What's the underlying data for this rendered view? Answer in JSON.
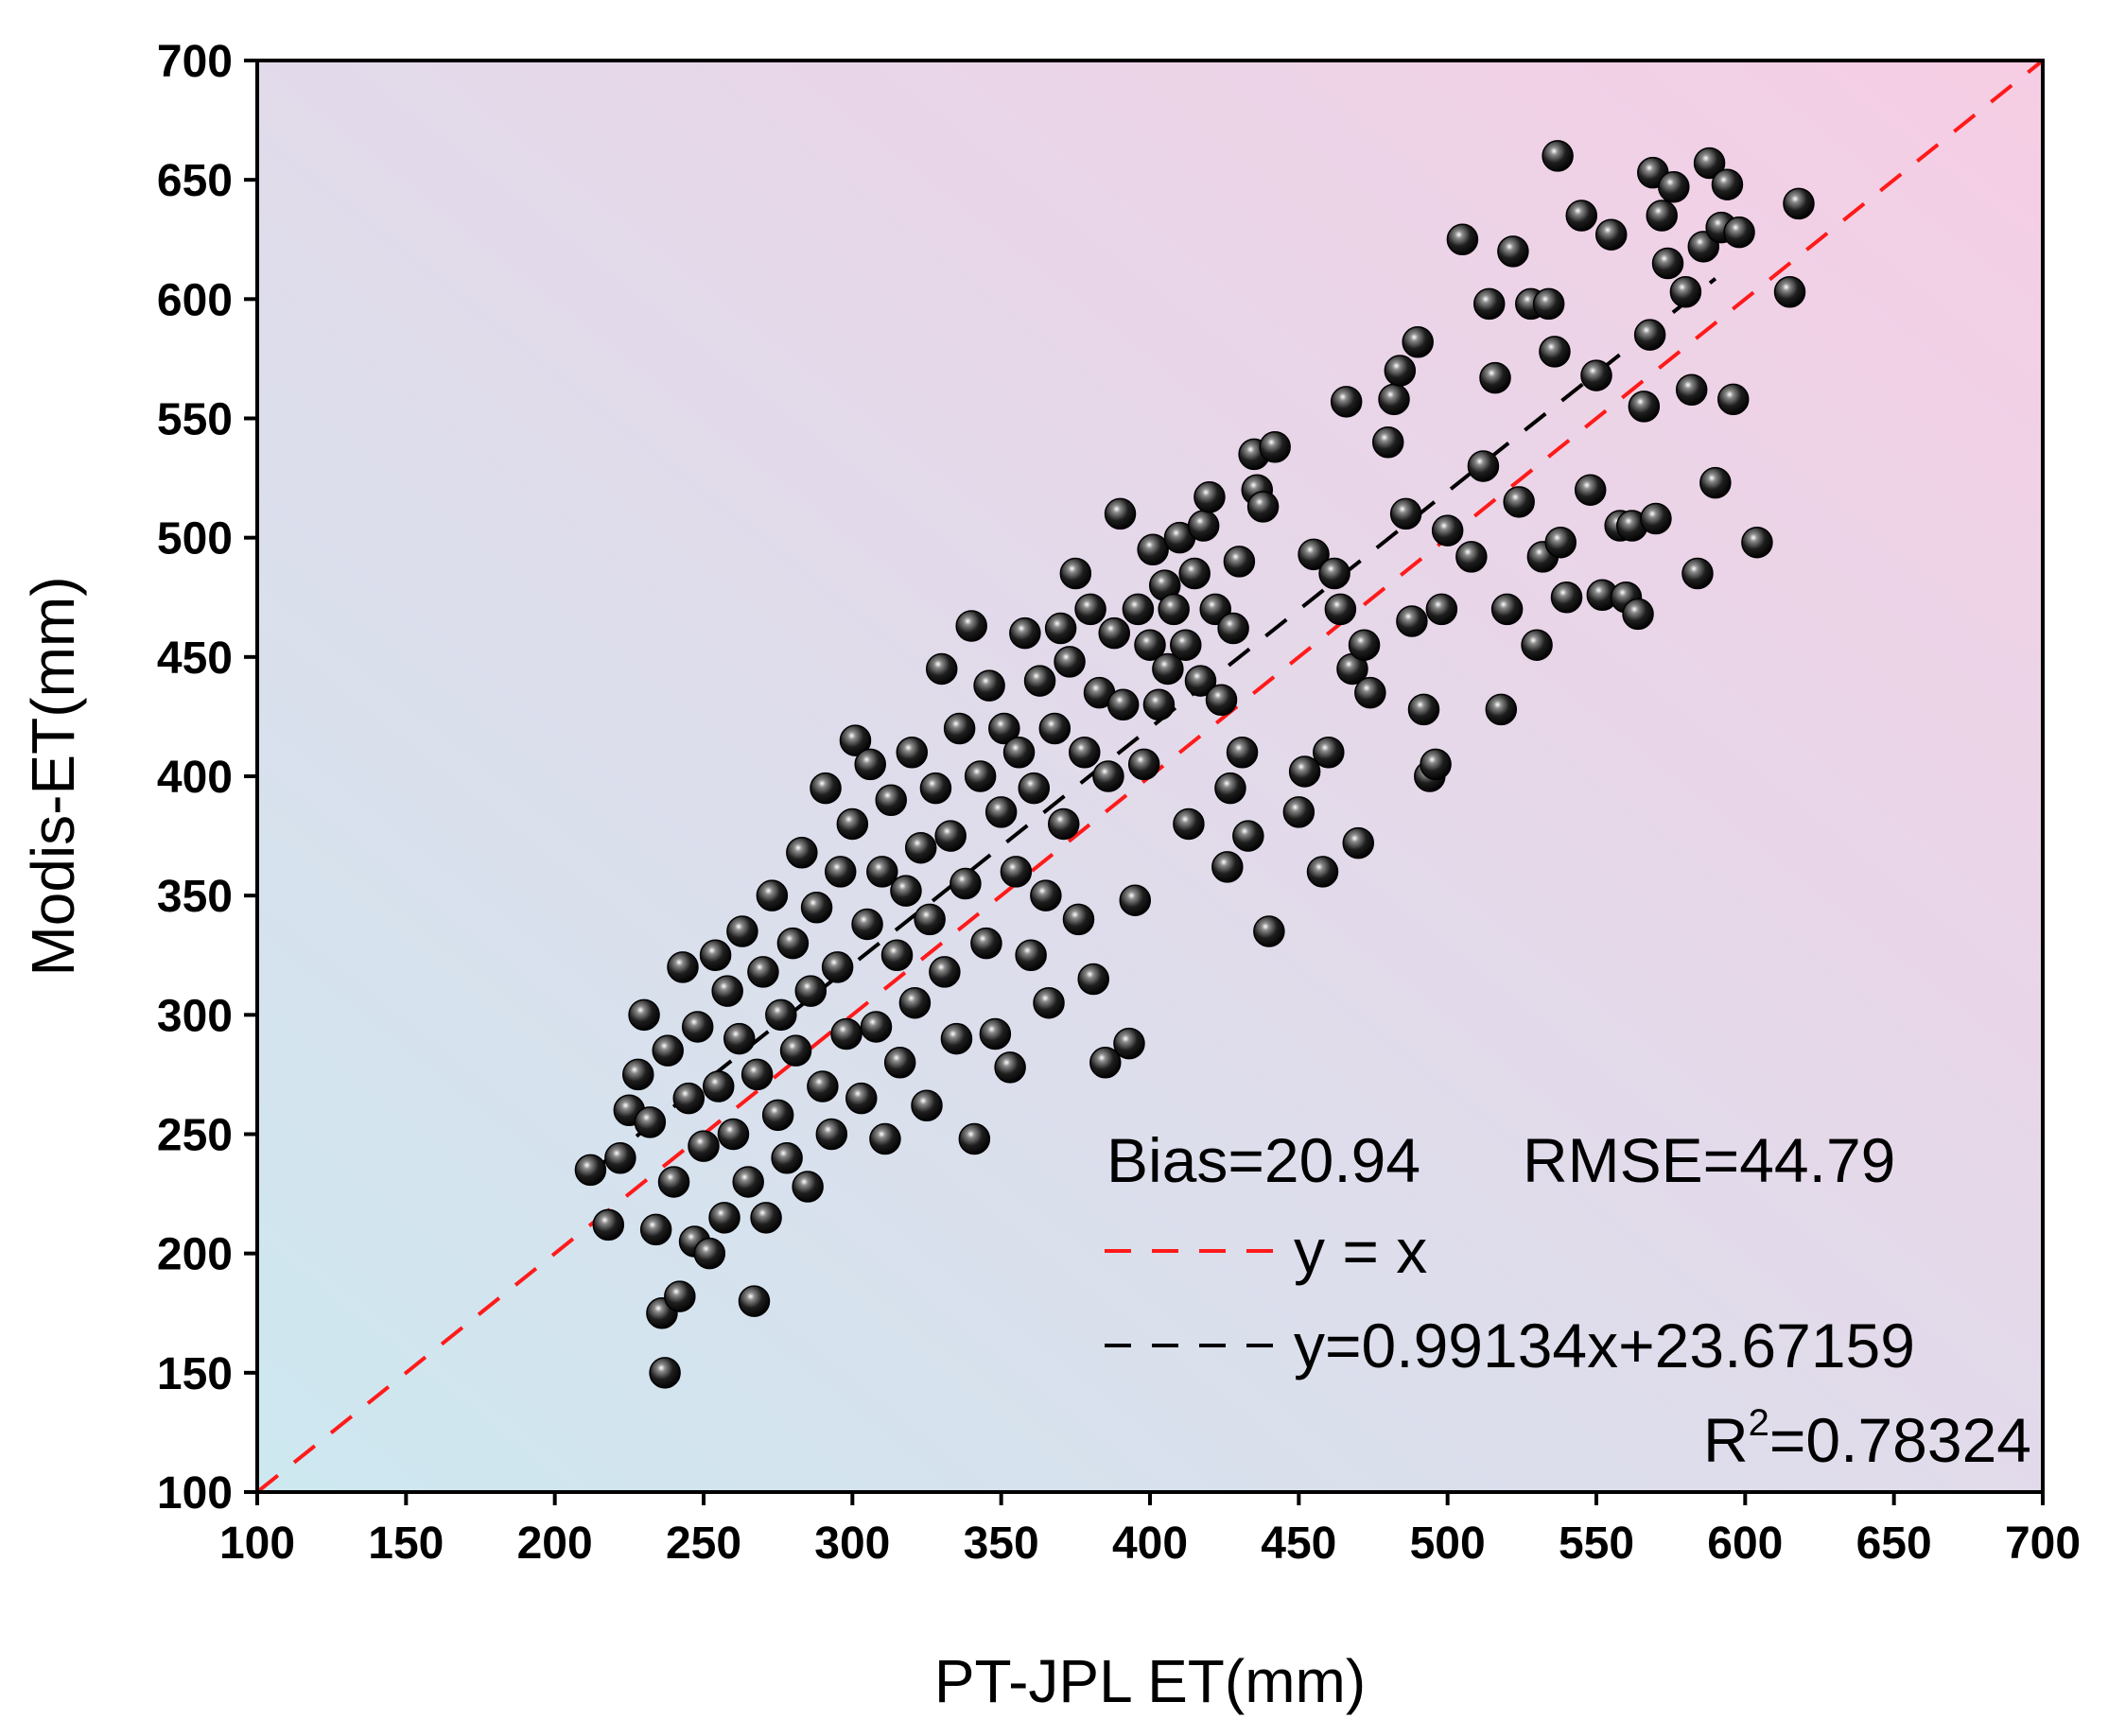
{
  "chart_data": {
    "type": "scatter",
    "title": "",
    "xlabel": "PT-JPL ET(mm)",
    "ylabel": "Modis-ET(mm)",
    "xlim": [
      100,
      700
    ],
    "ylim": [
      100,
      700
    ],
    "xticks": [
      "100",
      "150",
      "200",
      "250",
      "300",
      "350",
      "400",
      "450",
      "500",
      "550",
      "600",
      "650",
      "700"
    ],
    "yticks": [
      "100",
      "150",
      "200",
      "250",
      "300",
      "350",
      "400",
      "450",
      "500",
      "550",
      "600",
      "650",
      "700"
    ],
    "grid": false,
    "background": {
      "bottom_left": "#cde8f0",
      "top_right": "#f6cde4"
    },
    "stats": {
      "bias": "Bias=20.94",
      "rmse": "RMSE=44.79"
    },
    "legend": {
      "placement": "bottom-right",
      "one_to_one": {
        "label": "y = x",
        "color": "#ff1a1a",
        "slope": 1,
        "intercept": 0
      },
      "fit": {
        "label": "y=0.99134x+23.67159",
        "color": "#000000",
        "slope": 0.99134,
        "intercept": 23.67159,
        "x_range": [
          215,
          590
        ]
      },
      "r2": {
        "prefix": "R",
        "sup": "2",
        "suffix": "=0.78324"
      }
    },
    "point_color": "#000000",
    "points": [
      [
        212,
        235
      ],
      [
        218,
        212
      ],
      [
        222,
        240
      ],
      [
        225,
        260
      ],
      [
        228,
        275
      ],
      [
        230,
        300
      ],
      [
        232,
        255
      ],
      [
        234,
        210
      ],
      [
        236,
        175
      ],
      [
        237,
        150
      ],
      [
        238,
        285
      ],
      [
        240,
        230
      ],
      [
        242,
        182
      ],
      [
        243,
        320
      ],
      [
        245,
        265
      ],
      [
        247,
        205
      ],
      [
        248,
        295
      ],
      [
        250,
        245
      ],
      [
        252,
        200
      ],
      [
        254,
        325
      ],
      [
        255,
        270
      ],
      [
        257,
        215
      ],
      [
        258,
        310
      ],
      [
        260,
        250
      ],
      [
        262,
        290
      ],
      [
        263,
        335
      ],
      [
        265,
        230
      ],
      [
        267,
        180
      ],
      [
        268,
        275
      ],
      [
        270,
        318
      ],
      [
        271,
        215
      ],
      [
        273,
        350
      ],
      [
        275,
        258
      ],
      [
        276,
        300
      ],
      [
        278,
        240
      ],
      [
        280,
        330
      ],
      [
        281,
        285
      ],
      [
        283,
        368
      ],
      [
        285,
        228
      ],
      [
        286,
        310
      ],
      [
        288,
        345
      ],
      [
        290,
        270
      ],
      [
        291,
        395
      ],
      [
        293,
        250
      ],
      [
        295,
        320
      ],
      [
        296,
        360
      ],
      [
        298,
        292
      ],
      [
        300,
        380
      ],
      [
        301,
        415
      ],
      [
        303,
        265
      ],
      [
        305,
        338
      ],
      [
        306,
        405
      ],
      [
        308,
        295
      ],
      [
        310,
        360
      ],
      [
        311,
        248
      ],
      [
        313,
        390
      ],
      [
        315,
        325
      ],
      [
        316,
        280
      ],
      [
        318,
        352
      ],
      [
        320,
        410
      ],
      [
        321,
        305
      ],
      [
        323,
        370
      ],
      [
        325,
        262
      ],
      [
        326,
        340
      ],
      [
        328,
        395
      ],
      [
        330,
        445
      ],
      [
        331,
        318
      ],
      [
        333,
        375
      ],
      [
        335,
        290
      ],
      [
        336,
        420
      ],
      [
        338,
        355
      ],
      [
        340,
        463
      ],
      [
        341,
        248
      ],
      [
        343,
        400
      ],
      [
        345,
        330
      ],
      [
        346,
        438
      ],
      [
        348,
        292
      ],
      [
        350,
        385
      ],
      [
        351,
        420
      ],
      [
        353,
        278
      ],
      [
        355,
        360
      ],
      [
        356,
        410
      ],
      [
        358,
        460
      ],
      [
        360,
        325
      ],
      [
        361,
        395
      ],
      [
        363,
        440
      ],
      [
        365,
        350
      ],
      [
        366,
        305
      ],
      [
        368,
        420
      ],
      [
        370,
        462
      ],
      [
        371,
        380
      ],
      [
        373,
        448
      ],
      [
        375,
        485
      ],
      [
        376,
        340
      ],
      [
        378,
        410
      ],
      [
        380,
        470
      ],
      [
        381,
        315
      ],
      [
        383,
        435
      ],
      [
        385,
        280
      ],
      [
        386,
        400
      ],
      [
        388,
        460
      ],
      [
        390,
        510
      ],
      [
        391,
        430
      ],
      [
        393,
        288
      ],
      [
        395,
        348
      ],
      [
        396,
        470
      ],
      [
        398,
        405
      ],
      [
        400,
        455
      ],
      [
        401,
        495
      ],
      [
        403,
        430
      ],
      [
        405,
        480
      ],
      [
        406,
        445
      ],
      [
        408,
        470
      ],
      [
        410,
        500
      ],
      [
        412,
        455
      ],
      [
        413,
        380
      ],
      [
        415,
        485
      ],
      [
        417,
        440
      ],
      [
        418,
        505
      ],
      [
        420,
        517
      ],
      [
        422,
        470
      ],
      [
        424,
        432
      ],
      [
        426,
        362
      ],
      [
        427,
        395
      ],
      [
        428,
        462
      ],
      [
        430,
        490
      ],
      [
        431,
        410
      ],
      [
        433,
        375
      ],
      [
        435,
        535
      ],
      [
        436,
        520
      ],
      [
        438,
        513
      ],
      [
        440,
        335
      ],
      [
        442,
        538
      ],
      [
        450,
        385
      ],
      [
        452,
        402
      ],
      [
        455,
        493
      ],
      [
        458,
        360
      ],
      [
        460,
        410
      ],
      [
        462,
        485
      ],
      [
        464,
        470
      ],
      [
        466,
        557
      ],
      [
        468,
        445
      ],
      [
        470,
        372
      ],
      [
        472,
        455
      ],
      [
        474,
        435
      ],
      [
        480,
        540
      ],
      [
        482,
        558
      ],
      [
        484,
        570
      ],
      [
        486,
        510
      ],
      [
        488,
        465
      ],
      [
        490,
        582
      ],
      [
        492,
        428
      ],
      [
        494,
        400
      ],
      [
        496,
        405
      ],
      [
        498,
        470
      ],
      [
        500,
        503
      ],
      [
        505,
        625
      ],
      [
        508,
        492
      ],
      [
        512,
        530
      ],
      [
        514,
        598
      ],
      [
        516,
        567
      ],
      [
        518,
        428
      ],
      [
        520,
        470
      ],
      [
        522,
        620
      ],
      [
        524,
        515
      ],
      [
        528,
        598
      ],
      [
        530,
        455
      ],
      [
        532,
        492
      ],
      [
        534,
        598
      ],
      [
        536,
        578
      ],
      [
        537,
        660
      ],
      [
        538,
        498
      ],
      [
        540,
        475
      ],
      [
        545,
        635
      ],
      [
        548,
        520
      ],
      [
        550,
        568
      ],
      [
        552,
        476
      ],
      [
        555,
        627
      ],
      [
        558,
        505
      ],
      [
        560,
        475
      ],
      [
        562,
        505
      ],
      [
        564,
        468
      ],
      [
        566,
        555
      ],
      [
        568,
        585
      ],
      [
        569,
        653
      ],
      [
        570,
        508
      ],
      [
        572,
        635
      ],
      [
        574,
        615
      ],
      [
        576,
        647
      ],
      [
        580,
        603
      ],
      [
        582,
        562
      ],
      [
        584,
        485
      ],
      [
        586,
        622
      ],
      [
        588,
        657
      ],
      [
        590,
        523
      ],
      [
        592,
        630
      ],
      [
        594,
        648
      ],
      [
        596,
        558
      ],
      [
        598,
        628
      ],
      [
        604,
        498
      ],
      [
        615,
        603
      ],
      [
        618,
        640
      ]
    ]
  }
}
